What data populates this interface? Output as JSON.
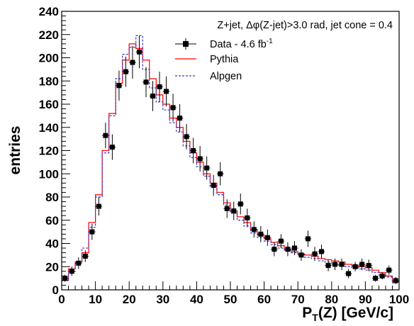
{
  "chart_data": {
    "type": "line",
    "title": "",
    "annotation": "Z+jet, Δφ(Z-jet)>3.0 rad, jet cone = 0.4",
    "xlabel": {
      "main": "P",
      "sub": "T",
      "rest": "(Z) [GeV/c]"
    },
    "ylabel": "entries",
    "xlim": [
      0,
      100
    ],
    "ylim": [
      0,
      240
    ],
    "x_ticks": [
      0,
      10,
      20,
      30,
      40,
      50,
      60,
      70,
      80,
      90,
      100
    ],
    "y_ticks": [
      0,
      20,
      40,
      60,
      80,
      100,
      120,
      140,
      160,
      180,
      200,
      220,
      240
    ],
    "bin_edges": [
      0,
      2,
      4,
      6,
      8,
      10,
      12,
      14,
      16,
      18,
      20,
      22,
      24,
      26,
      28,
      30,
      32,
      34,
      36,
      38,
      40,
      42,
      44,
      46,
      48,
      50,
      52,
      54,
      56,
      58,
      60,
      62,
      64,
      66,
      68,
      70,
      72,
      74,
      76,
      78,
      80,
      82,
      84,
      86,
      88,
      90,
      92,
      94,
      96,
      98,
      100
    ],
    "legend": {
      "position": "top-right",
      "entries": [
        {
          "label": "Data - 4.6 fb",
          "sup": "-1",
          "style": "marker"
        },
        {
          "label": "Pythia",
          "style": "line"
        },
        {
          "label": "Alpgen",
          "style": "dashed"
        }
      ]
    },
    "series": [
      {
        "name": "Data - 4.6 fb-1",
        "kind": "points",
        "color": "#000000",
        "x": [
          1,
          3,
          5,
          7,
          9,
          11,
          13,
          15,
          17,
          19,
          21,
          23,
          25,
          27,
          29,
          31,
          33,
          35,
          37,
          39,
          41,
          43,
          45,
          47,
          49,
          51,
          53,
          55,
          57,
          59,
          61,
          63,
          65,
          67,
          69,
          71,
          73,
          75,
          77,
          79,
          81,
          83,
          85,
          87,
          89,
          91,
          93,
          95,
          97,
          99
        ],
        "y": [
          10,
          16,
          23,
          29,
          50,
          72,
          133,
          123,
          176,
          188,
          196,
          205,
          179,
          167,
          175,
          171,
          157,
          148,
          132,
          120,
          113,
          105,
          90,
          100,
          70,
          68,
          74,
          62,
          52,
          48,
          45,
          35,
          42,
          35,
          36,
          30,
          44,
          31,
          33,
          21,
          22,
          22,
          14,
          20,
          22,
          21,
          10,
          12,
          17,
          8
        ],
        "yerr": [
          3,
          4,
          5,
          5,
          7,
          8,
          11,
          11,
          13,
          13,
          14,
          14,
          13,
          13,
          13,
          13,
          12,
          12,
          11,
          11,
          11,
          10,
          9,
          10,
          8,
          8,
          9,
          8,
          7,
          7,
          7,
          6,
          6,
          6,
          6,
          5,
          7,
          6,
          6,
          5,
          5,
          5,
          4,
          4,
          5,
          5,
          3,
          3,
          4,
          3
        ]
      },
      {
        "name": "Pythia",
        "kind": "histogram",
        "color": "#ff0000",
        "values": [
          8,
          18,
          24,
          32,
          58,
          82,
          120,
          152,
          178,
          198,
          212,
          208,
          198,
          182,
          168,
          160,
          148,
          140,
          128,
          118,
          110,
          100,
          92,
          84,
          75,
          68,
          63,
          58,
          52,
          47,
          44,
          41,
          38,
          35,
          33,
          31,
          30,
          29,
          27,
          26,
          25,
          24,
          22,
          21,
          20,
          19,
          17,
          15,
          12,
          7
        ]
      },
      {
        "name": "Alpgen",
        "kind": "histogram",
        "color": "#3a3acc",
        "values": [
          8,
          16,
          24,
          36,
          54,
          80,
          118,
          150,
          182,
          203,
          209,
          219,
          190,
          174,
          162,
          155,
          144,
          136,
          124,
          114,
          106,
          98,
          89,
          82,
          73,
          66,
          60,
          55,
          49,
          45,
          42,
          39,
          36,
          34,
          32,
          30,
          28,
          27,
          25,
          24,
          22,
          21,
          20,
          19,
          18,
          17,
          15,
          13,
          11,
          6
        ]
      }
    ]
  }
}
